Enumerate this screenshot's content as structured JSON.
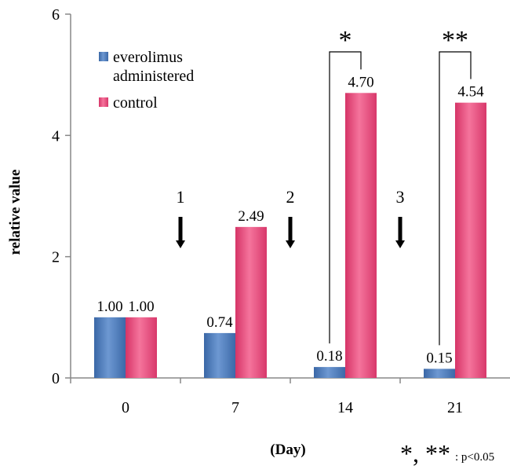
{
  "chart_data": {
    "type": "bar",
    "categories": [
      "0",
      "7",
      "14",
      "21"
    ],
    "series": [
      {
        "name": "everolimus administered",
        "name_lines": [
          "everolimus",
          "administered"
        ],
        "values": [
          1.0,
          0.74,
          0.18,
          0.15
        ],
        "labels": [
          "1.00",
          "0.74",
          "0.18",
          "0.15"
        ],
        "color": "#4a78b8"
      },
      {
        "name": "control",
        "name_lines": [
          "control"
        ],
        "values": [
          1.0,
          2.49,
          4.7,
          4.54
        ],
        "labels": [
          "1.00",
          "2.49",
          "4.70",
          "4.54"
        ],
        "color": "#e8467a"
      }
    ],
    "ylim": [
      0,
      6
    ],
    "yticks": [
      "0",
      "2",
      "4",
      "6"
    ],
    "ytick_values": [
      0,
      2,
      4,
      6
    ],
    "ylabel": "relative value",
    "xlabel": "(Day)",
    "legend_position": "top-left",
    "grid": false,
    "arrows": [
      {
        "label": "1",
        "between": [
          0,
          1
        ]
      },
      {
        "label": "2",
        "between": [
          1,
          2
        ]
      },
      {
        "label": "3",
        "between": [
          2,
          3
        ]
      }
    ],
    "significance": [
      {
        "category": 2,
        "mark": "*"
      },
      {
        "category": 3,
        "mark": "**"
      }
    ],
    "footnote": {
      "marks": "*, **",
      "text": ": p<0.05"
    }
  }
}
